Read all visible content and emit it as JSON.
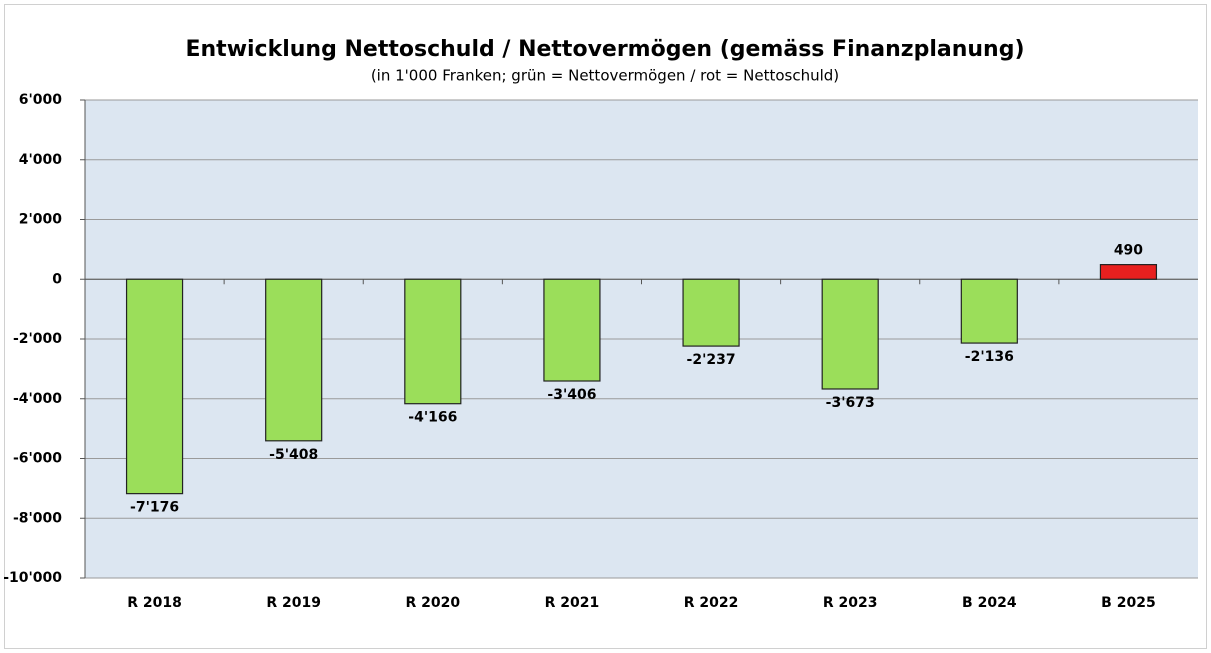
{
  "chart_data": {
    "type": "bar",
    "title": "Entwicklung Nettoschuld / Nettovermögen (gemäss Finanzplanung)",
    "subtitle": "(in 1'000 Franken; grün = Nettovermögen / rot = Nettoschuld)",
    "categories": [
      "R 2018",
      "R 2019",
      "R 2020",
      "R 2021",
      "R 2022",
      "R 2023",
      "B 2024",
      "B 2025"
    ],
    "values": [
      -7176,
      -5408,
      -4166,
      -3406,
      -2237,
      -3673,
      -2136,
      490
    ],
    "value_labels": [
      "-7'176",
      "-5'408",
      "-4'166",
      "-3'406",
      "-2'237",
      "-3'673",
      "-2'136",
      "490"
    ],
    "colors": [
      "#9bde5a",
      "#9bde5a",
      "#9bde5a",
      "#9bde5a",
      "#9bde5a",
      "#9bde5a",
      "#9bde5a",
      "#e8201f"
    ],
    "ylim": [
      -10000,
      6000
    ],
    "yticks": [
      {
        "value": -10000,
        "label": "-10'000"
      },
      {
        "value": -8000,
        "label": "-8'000"
      },
      {
        "value": -6000,
        "label": "-6'000"
      },
      {
        "value": -4000,
        "label": "-4'000"
      },
      {
        "value": -2000,
        "label": "-2'000"
      },
      0,
      {
        "value": 2000,
        "label": "2'000"
      },
      {
        "value": 4000,
        "label": "4'000"
      },
      {
        "value": 6000,
        "label": "6'000"
      }
    ],
    "grid": true
  }
}
